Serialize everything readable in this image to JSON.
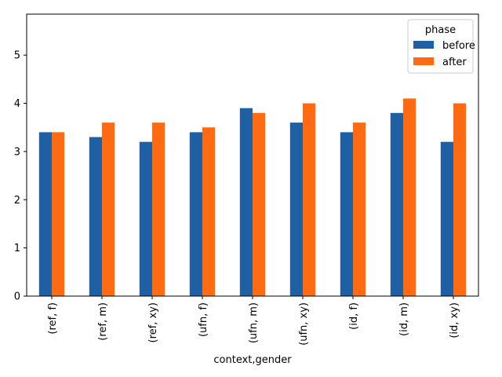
{
  "chart_data": {
    "type": "bar",
    "xlabel": "context,gender",
    "ylabel": "",
    "categories": [
      "(ref, f)",
      "(ref, m)",
      "(ref, xy)",
      "(ufn, f)",
      "(ufn, m)",
      "(ufn, xy)",
      "(id, f)",
      "(id, m)",
      "(id, xy)"
    ],
    "series": [
      {
        "name": "before",
        "color": "#1f5fa3",
        "values": [
          3.4,
          3.3,
          3.2,
          3.4,
          3.9,
          3.6,
          3.4,
          3.8,
          3.2
        ]
      },
      {
        "name": "after",
        "color": "#ff6a13",
        "values": [
          3.4,
          3.6,
          3.6,
          3.5,
          3.8,
          4.0,
          3.6,
          4.1,
          4.0
        ]
      }
    ],
    "ylim": [
      0,
      5.85
    ],
    "yticks": [
      0,
      1,
      2,
      3,
      4,
      5
    ],
    "grid": false,
    "legend": {
      "title": "phase",
      "placement": "top-right"
    }
  }
}
